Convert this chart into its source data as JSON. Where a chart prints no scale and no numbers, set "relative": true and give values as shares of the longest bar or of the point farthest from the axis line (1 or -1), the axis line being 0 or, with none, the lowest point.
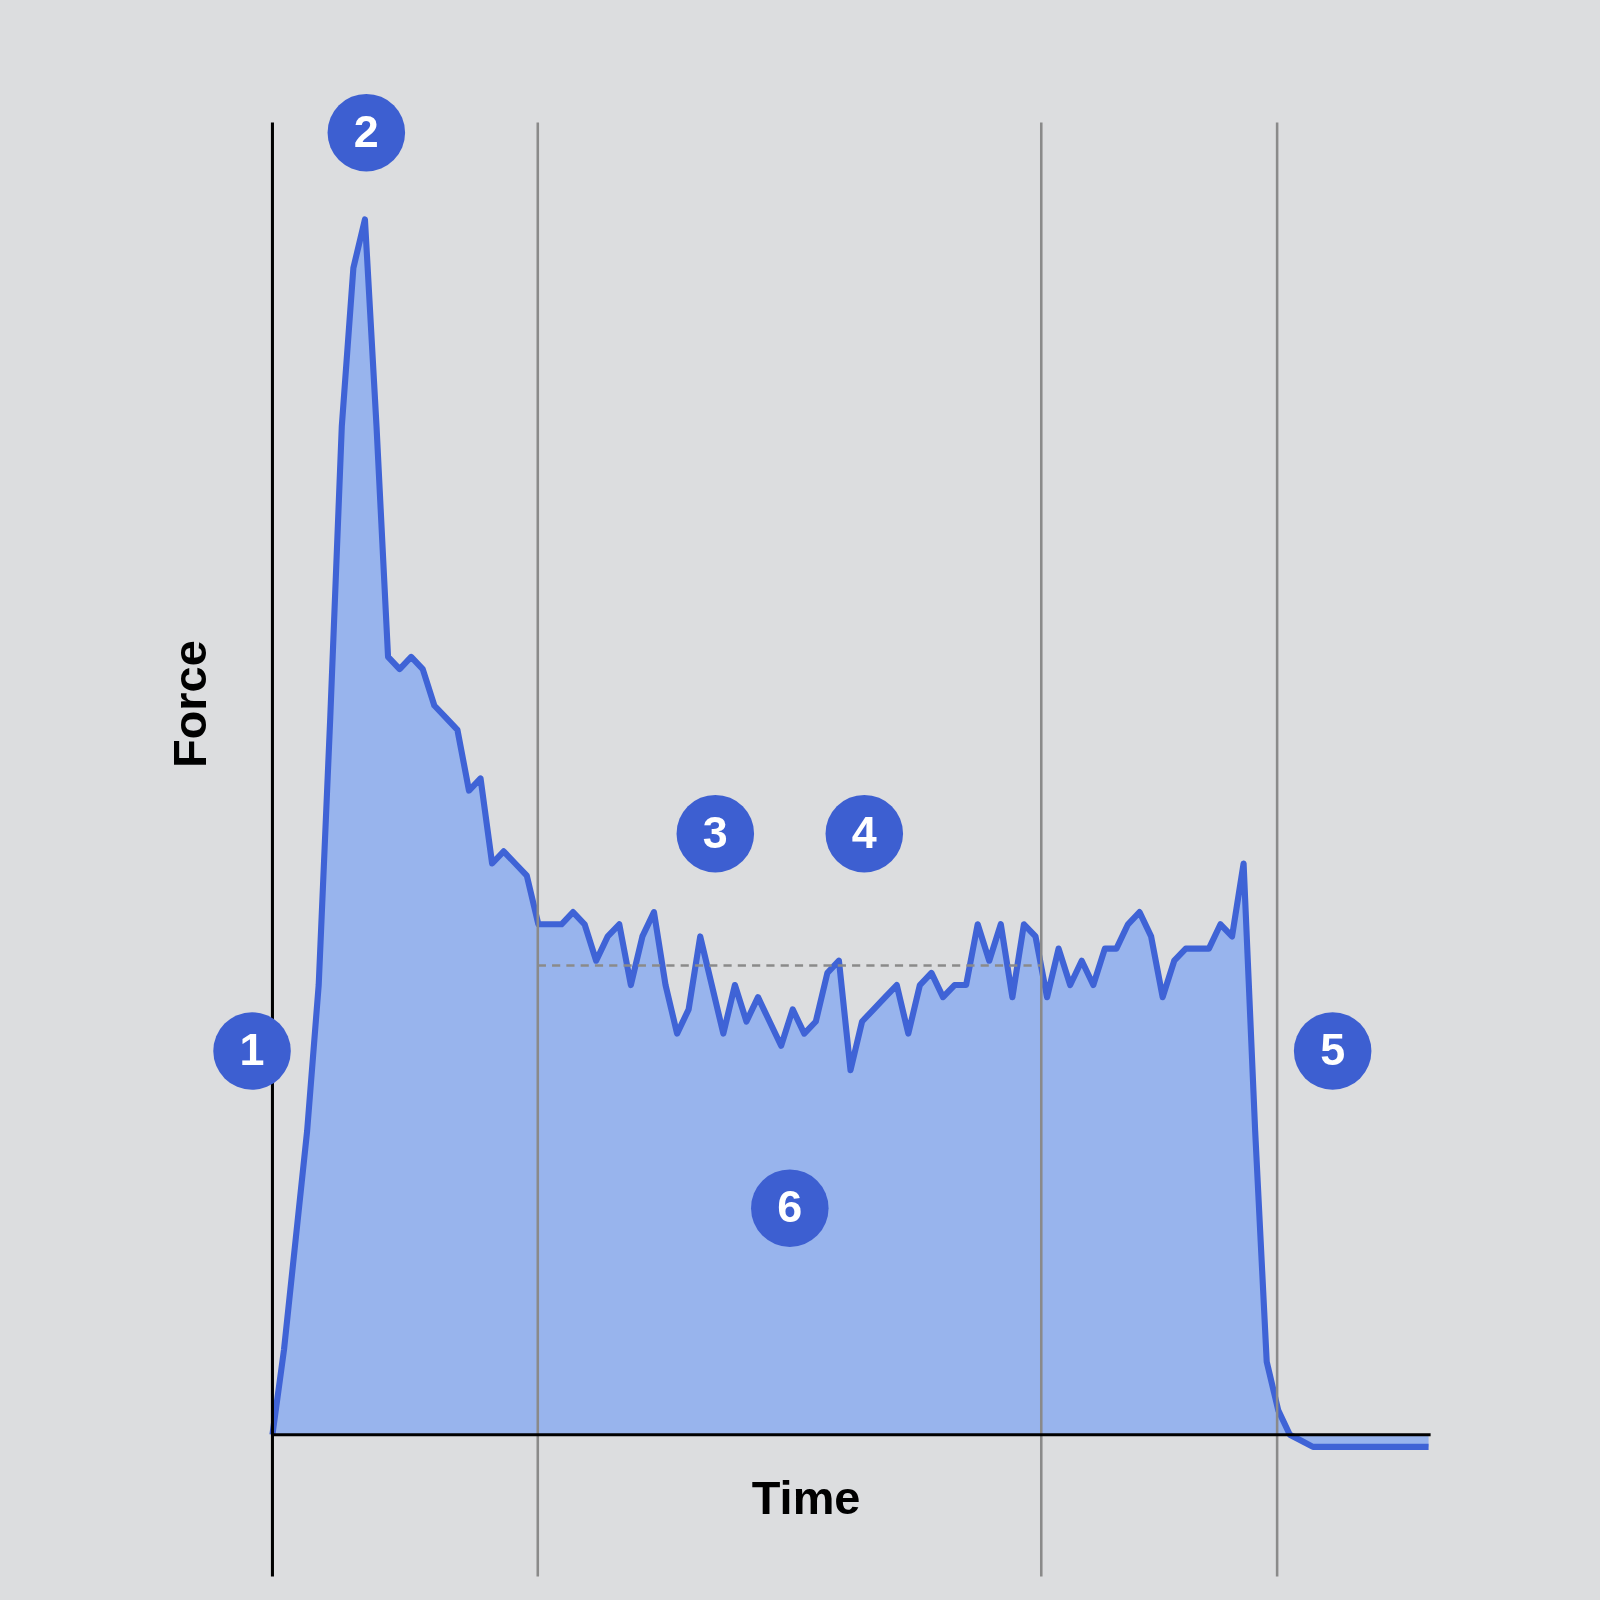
{
  "chart_data": {
    "type": "area",
    "xlabel": "Time",
    "ylabel": "Force",
    "relative": true,
    "ref_lines": [
      {
        "axis": "y",
        "value": 0.386,
        "color": "#8a8a8a",
        "line_style": "dashed"
      }
    ],
    "color": "#3f63d6",
    "categories": [
      null,
      null,
      null,
      null,
      null,
      null,
      null,
      null,
      null,
      null,
      null,
      null,
      null,
      null,
      null,
      null,
      null,
      null,
      null,
      null,
      null,
      null,
      null,
      null,
      null,
      null,
      null,
      null,
      null,
      null,
      null,
      null,
      null,
      null,
      null,
      null,
      null,
      null,
      null,
      null,
      null,
      null,
      null,
      null,
      null,
      null,
      null,
      null,
      null,
      null,
      null,
      null,
      null,
      null,
      null,
      null,
      null,
      null,
      null,
      null,
      null,
      null,
      null,
      null,
      null,
      null,
      null,
      null,
      null,
      null,
      null,
      null,
      null,
      null,
      null,
      null,
      null,
      null,
      null,
      null,
      null,
      null,
      null,
      null,
      null,
      null,
      null,
      null,
      null,
      null,
      null,
      null,
      null,
      null,
      null,
      null,
      null,
      null,
      null,
      null,
      null
    ],
    "values": [
      0,
      0.07,
      0.16,
      0.25,
      0.37,
      0.59,
      0.83,
      0.96,
      1,
      0.83,
      0.64,
      0.63,
      0.64,
      0.63,
      0.6,
      0.59,
      0.58,
      0.53,
      0.54,
      0.47,
      0.48,
      0.47,
      0.46,
      0.42,
      0.42,
      0.42,
      0.43,
      0.42,
      0.39,
      0.41,
      0.42,
      0.37,
      0.41,
      0.43,
      0.37,
      0.33,
      0.35,
      0.41,
      0.37,
      0.33,
      0.37,
      0.34,
      0.36,
      0.34,
      0.32,
      0.35,
      0.33,
      0.34,
      0.38,
      0.39,
      0.3,
      0.34,
      0.35,
      0.36,
      0.37,
      0.33,
      0.37,
      0.38,
      0.36,
      0.37,
      0.37,
      0.42,
      0.39,
      0.42,
      0.36,
      0.42,
      0.41,
      0.36,
      0.4,
      0.37,
      0.39,
      0.37,
      0.4,
      0.4,
      0.42,
      0.43,
      0.41,
      0.36,
      0.39,
      0.4,
      0.4,
      0.4,
      0.42,
      0.41,
      0.47,
      0.25,
      0.06,
      0.02,
      0,
      -0.005,
      -0.01,
      -0.01,
      -0.01,
      -0.01,
      -0.01,
      -0.01,
      -0.01,
      -0.01,
      -0.01,
      -0.01,
      -0.01
    ],
    "annotations": [
      "1",
      "2",
      "3",
      "4",
      "5",
      "6"
    ]
  }
}
